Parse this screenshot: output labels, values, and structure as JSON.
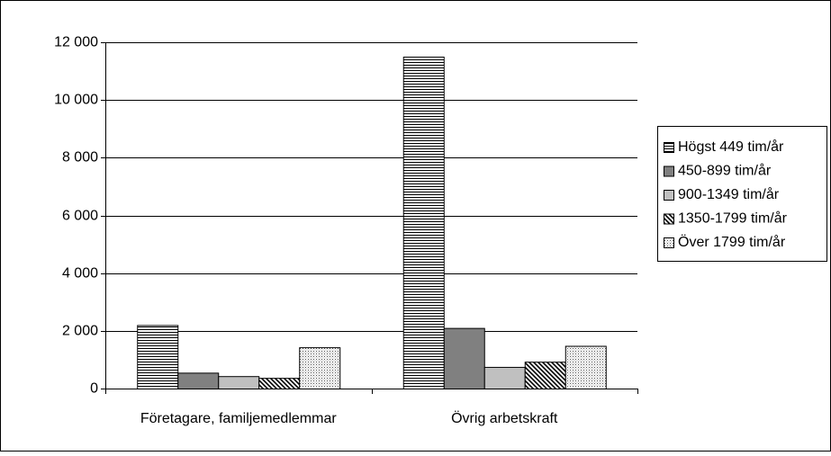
{
  "chart_data": {
    "type": "bar",
    "categories": [
      "Företagare, familjemedlemmar",
      "Övrig arbetskraft"
    ],
    "series": [
      {
        "name": "Högst 449 tim/år",
        "color": "#ffffff",
        "pattern": "horizontal",
        "values": [
          2200,
          11500
        ]
      },
      {
        "name": "450-899 tim/år",
        "color": "#808080",
        "pattern": "solid",
        "values": [
          550,
          2100
        ]
      },
      {
        "name": "900-1349 tim/år",
        "color": "#c0c0c0",
        "pattern": "solid",
        "values": [
          430,
          750
        ]
      },
      {
        "name": "1350-1799 tim/år",
        "color": "#ffffff",
        "pattern": "diagonal",
        "values": [
          370,
          930
        ]
      },
      {
        "name": "Över 1799 tim/år",
        "color": "#ffffff",
        "pattern": "dotted",
        "values": [
          1430,
          1480
        ]
      }
    ],
    "ylim": [
      0,
      12000
    ],
    "yticks": [
      0,
      {
        "value": 2000,
        "label": "2 000"
      },
      {
        "value": 4000,
        "label": "4 000"
      },
      {
        "value": 6000,
        "label": "6 000"
      },
      {
        "value": 8000,
        "label": "8 000"
      },
      {
        "value": 10000,
        "label": "10 000"
      },
      {
        "value": 12000,
        "label": "12 000"
      }
    ],
    "grid": true,
    "legend": "right"
  }
}
